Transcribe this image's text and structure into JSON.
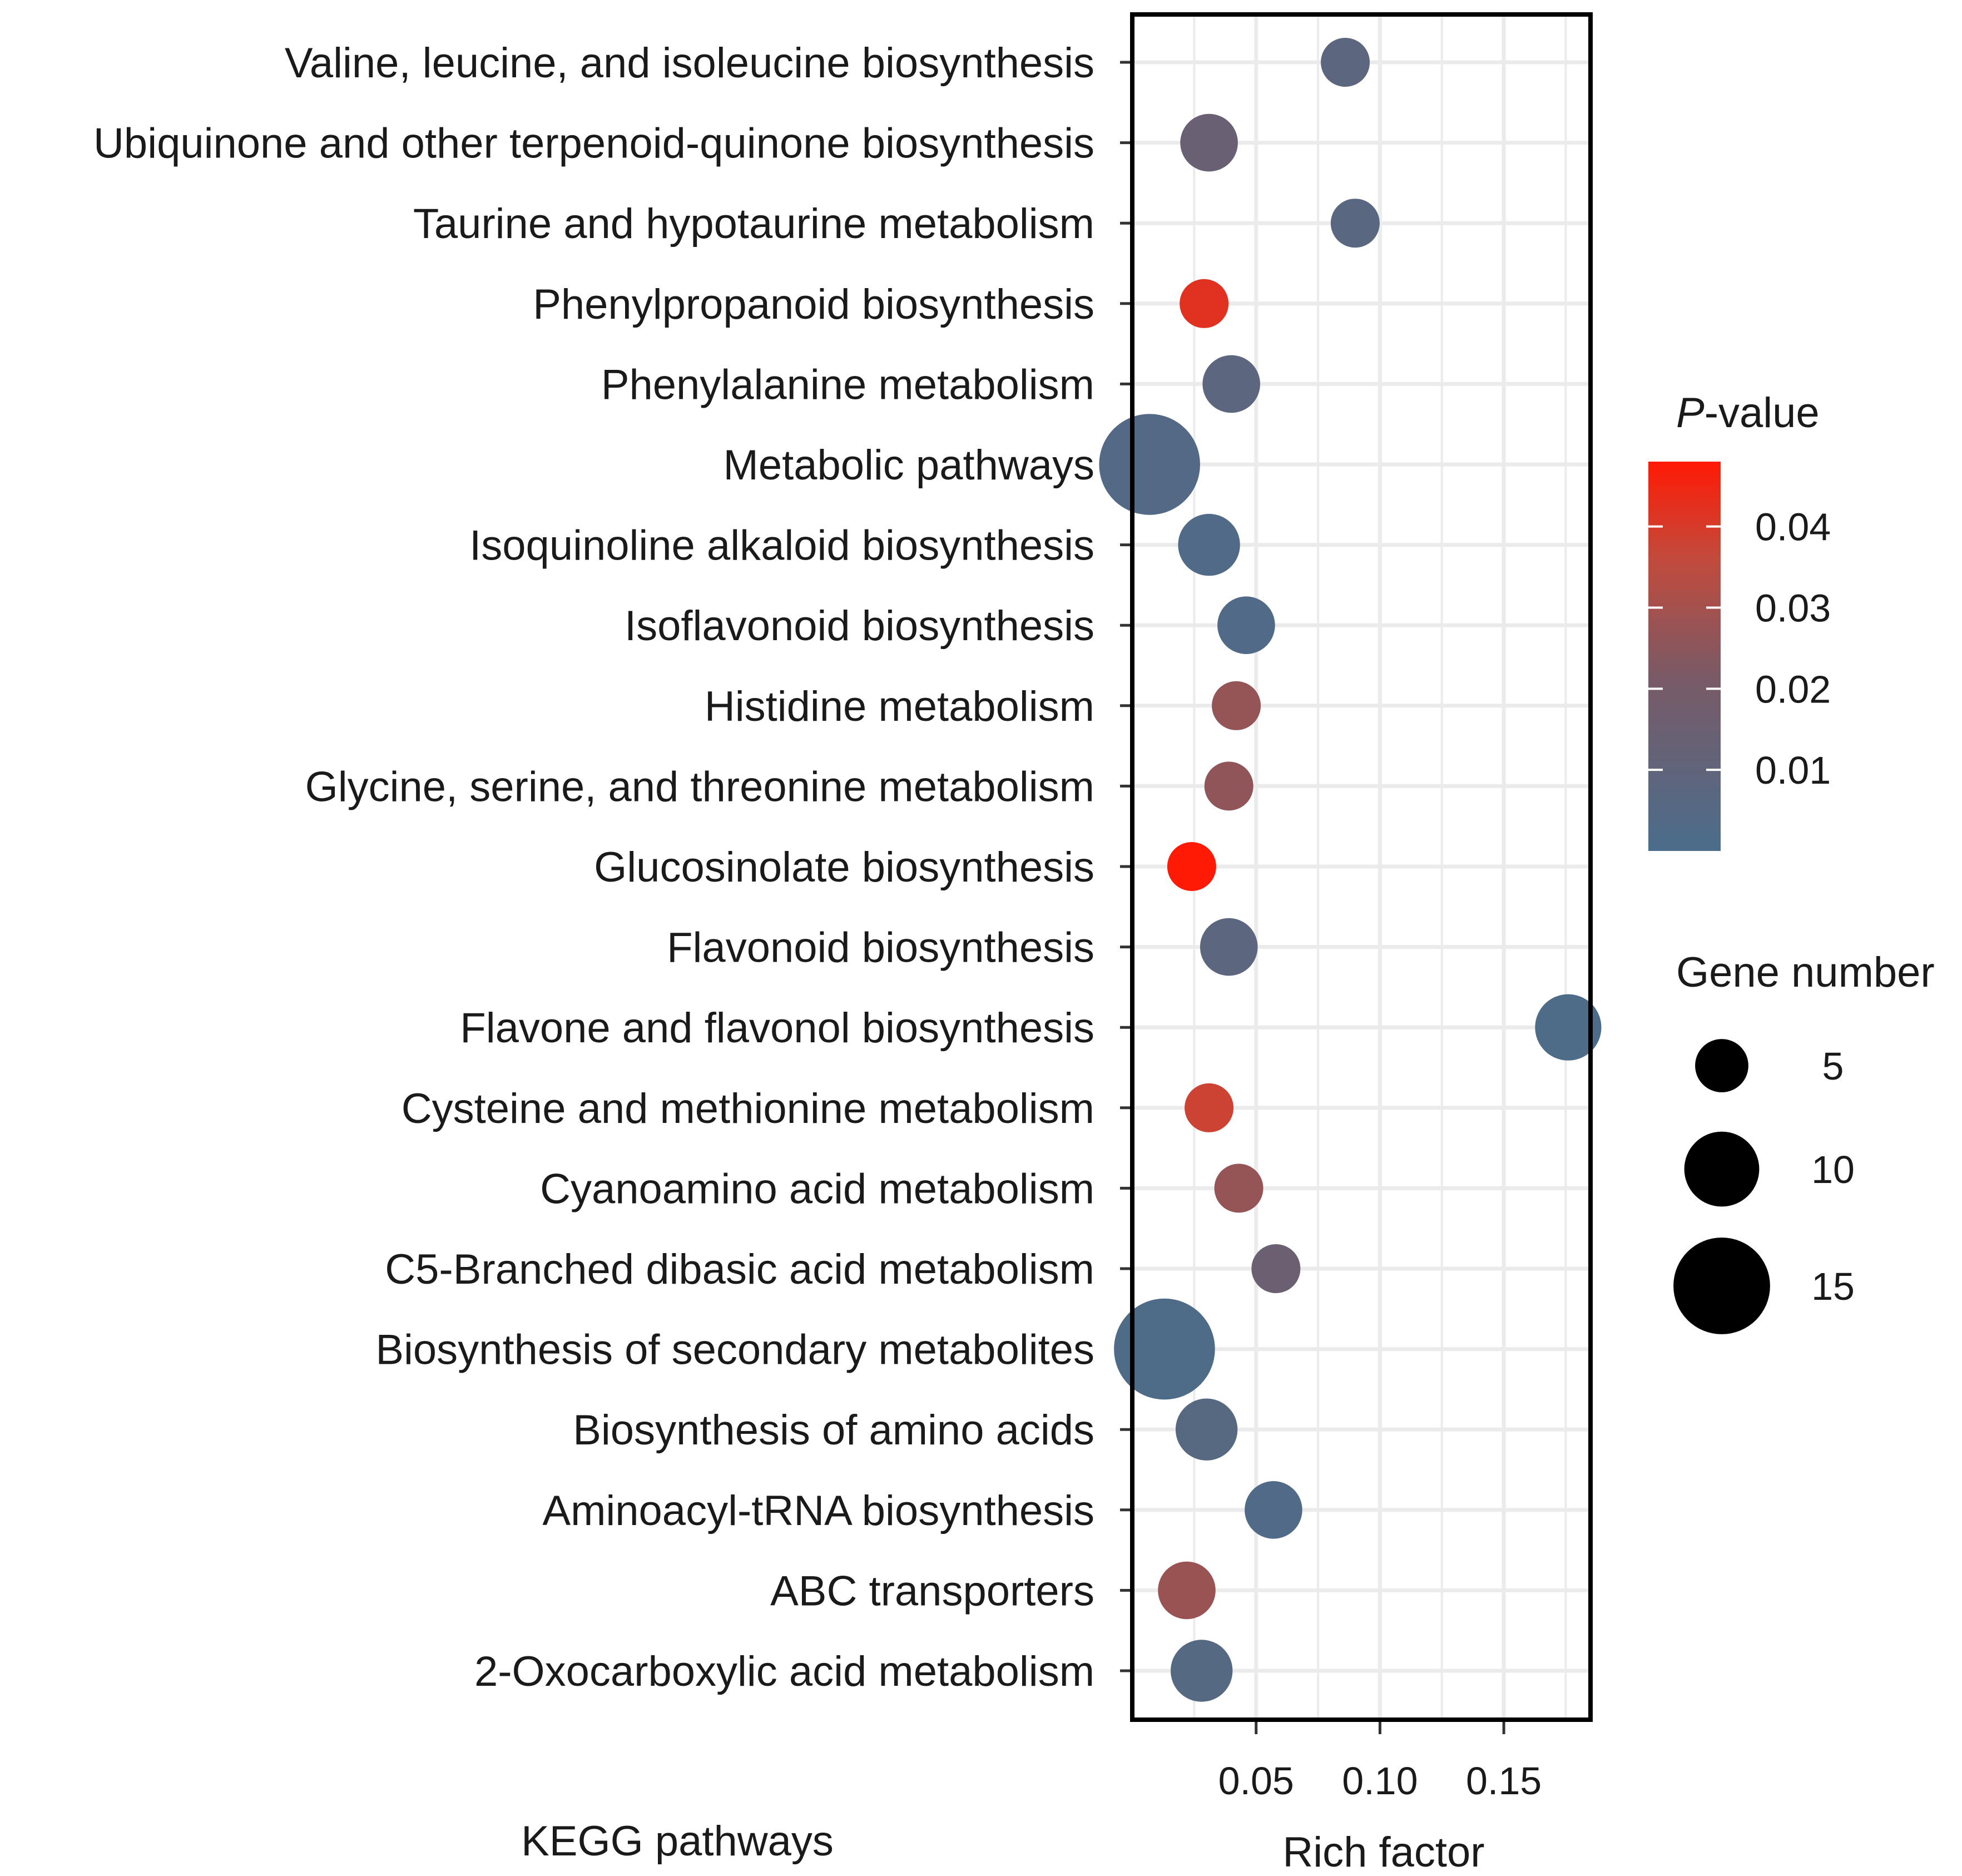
{
  "chart_data": {
    "type": "scatter",
    "subtype": "bubble",
    "ylabel": "KEGG pathways",
    "xlabel": "Rich factor",
    "xlim": [
      0.0,
      0.185
    ],
    "x_ticks": [
      0.05,
      0.1,
      0.15
    ],
    "x_tick_labels": [
      "0.05",
      "0.10",
      "0.15"
    ],
    "grid": true,
    "categories": [
      "Valine, leucine, and isoleucine biosynthesis",
      "Ubiquinone and other terpenoid-quinone biosynthesis",
      "Taurine and hypotaurine metabolism",
      "Phenylpropanoid biosynthesis",
      "Phenylalanine metabolism",
      "Metabolic pathways",
      "Isoquinoline alkaloid biosynthesis",
      "Isoflavonoid biosynthesis",
      "Histidine metabolism",
      "Glycine, serine, and threonine metabolism",
      "Glucosinolate biosynthesis",
      "Flavonoid biosynthesis",
      "Flavone and flavonol biosynthesis",
      "Cysteine and methionine metabolism",
      "Cyanoamino acid metabolism",
      "C5-Branched dibasic acid metabolism",
      "Biosynthesis of secondary metabolites",
      "Biosynthesis of amino acids",
      "Aminoacyl-tRNA biosynthesis",
      "ABC transporters",
      "2-Oxocarboxylic acid metabolism"
    ],
    "points": [
      {
        "pathway": "Valine, leucine, and isoleucine biosynthesis",
        "rich_factor": 0.086,
        "p_value": 0.008,
        "gene_number": 4
      },
      {
        "pathway": "Ubiquinone and other terpenoid-quinone biosynthesis",
        "rich_factor": 0.031,
        "p_value": 0.014,
        "gene_number": 6
      },
      {
        "pathway": "Taurine and hypotaurine metabolism",
        "rich_factor": 0.09,
        "p_value": 0.007,
        "gene_number": 4
      },
      {
        "pathway": "Phenylpropanoid biosynthesis",
        "rich_factor": 0.029,
        "p_value": 0.042,
        "gene_number": 4
      },
      {
        "pathway": "Phenylalanine metabolism",
        "rich_factor": 0.04,
        "p_value": 0.008,
        "gene_number": 6
      },
      {
        "pathway": "Metabolic pathways",
        "rich_factor": 0.007,
        "p_value": 0.004,
        "gene_number": 16
      },
      {
        "pathway": "Isoquinoline alkaloid biosynthesis",
        "rich_factor": 0.031,
        "p_value": 0.003,
        "gene_number": 7
      },
      {
        "pathway": "Isoflavonoid biosynthesis",
        "rich_factor": 0.046,
        "p_value": 0.003,
        "gene_number": 6
      },
      {
        "pathway": "Histidine metabolism",
        "rich_factor": 0.042,
        "p_value": 0.027,
        "gene_number": 4
      },
      {
        "pathway": "Glycine, serine, and threonine metabolism",
        "rich_factor": 0.039,
        "p_value": 0.026,
        "gene_number": 4
      },
      {
        "pathway": "Glucosinolate biosynthesis",
        "rich_factor": 0.024,
        "p_value": 0.048,
        "gene_number": 4
      },
      {
        "pathway": "Flavonoid biosynthesis",
        "rich_factor": 0.039,
        "p_value": 0.008,
        "gene_number": 6
      },
      {
        "pathway": "Flavone and flavonol biosynthesis",
        "rich_factor": 0.176,
        "p_value": 0.002,
        "gene_number": 8
      },
      {
        "pathway": "Cysteine and methionine metabolism",
        "rich_factor": 0.031,
        "p_value": 0.038,
        "gene_number": 4
      },
      {
        "pathway": "Cyanoamino acid metabolism",
        "rich_factor": 0.043,
        "p_value": 0.027,
        "gene_number": 4
      },
      {
        "pathway": "C5-Branched dibasic acid metabolism",
        "rich_factor": 0.058,
        "p_value": 0.015,
        "gene_number": 4
      },
      {
        "pathway": "Biosynthesis of secondary metabolites",
        "rich_factor": 0.013,
        "p_value": 0.002,
        "gene_number": 16
      },
      {
        "pathway": "Biosynthesis of amino acids",
        "rich_factor": 0.03,
        "p_value": 0.006,
        "gene_number": 7
      },
      {
        "pathway": "Aminoacyl-tRNA biosynthesis",
        "rich_factor": 0.057,
        "p_value": 0.003,
        "gene_number": 6
      },
      {
        "pathway": "ABC transporters",
        "rich_factor": 0.022,
        "p_value": 0.028,
        "gene_number": 6
      },
      {
        "pathway": "2-Oxocarboxylic acid metabolism",
        "rich_factor": 0.028,
        "p_value": 0.005,
        "gene_number": 7
      }
    ],
    "color_legend": {
      "title_italic": "P",
      "title_rest": "-value",
      "range": [
        0.0,
        0.048
      ],
      "ticks": [
        0.04,
        0.03,
        0.02,
        0.01
      ],
      "tick_labels": [
        "0.04",
        "0.03",
        "0.02",
        "0.01"
      ],
      "low_color": "#4a6d8c",
      "high_color": "#ff1a05",
      "position": "right"
    },
    "size_legend": {
      "title": "Gene number",
      "values": [
        5,
        10,
        15
      ],
      "labels": [
        "5",
        "10",
        "15"
      ],
      "position": "right"
    }
  }
}
